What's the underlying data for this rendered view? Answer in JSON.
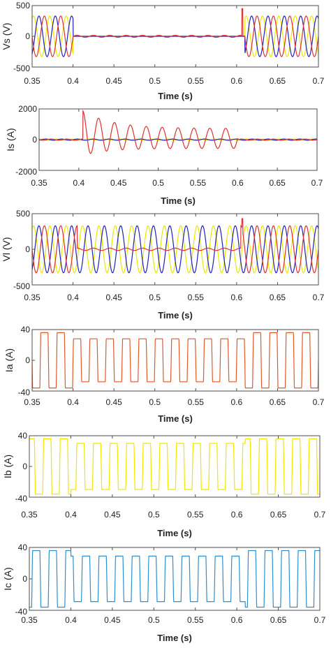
{
  "figure": {
    "background": "#ffffff",
    "axis_color": "#4d4d4d"
  },
  "chart_data": [
    {
      "type": "line",
      "title": "",
      "xlabel": "Time (s)",
      "ylabel": "Vs (V)",
      "xlim": [
        0.35,
        0.7
      ],
      "ylim": [
        -500,
        500
      ],
      "xticks": [
        0.35,
        0.4,
        0.45,
        0.5,
        0.55,
        0.6,
        0.65,
        0.7
      ],
      "xtick_labels": [
        "0.35",
        "0.4",
        "0.45",
        "0.5",
        "0.55",
        "0.6",
        "0.65",
        "0.7"
      ],
      "yticks": [
        -500,
        0,
        500
      ],
      "ytick_labels": [
        "-500",
        "0",
        "500"
      ],
      "grid": false,
      "series": [
        {
          "color": "#e8e800",
          "kind": "sine",
          "amplitude": 330,
          "frequency": 50,
          "phase_deg": -120,
          "envelope": [
            [
              0.4,
              0.61,
              0
            ]
          ],
          "spike": null
        },
        {
          "color": "#2020c0",
          "kind": "sine",
          "amplitude": 330,
          "frequency": 50,
          "phase_deg": 120,
          "envelope": [
            [
              0.4,
              0.61,
              0
            ]
          ],
          "spike": null
        },
        {
          "color": "#e03030",
          "kind": "sine",
          "amplitude": 330,
          "frequency": 50,
          "phase_deg": 0,
          "envelope": [
            [
              0.4,
              0.61,
              0.05
            ]
          ],
          "spike": {
            "x": 0.607,
            "y": 450
          }
        }
      ]
    },
    {
      "type": "line",
      "title": "",
      "xlabel": "Time (s)",
      "ylabel": "Is (A)",
      "xlim": [
        0.35,
        0.7
      ],
      "ylim": [
        -2000,
        2000
      ],
      "xticks": [
        0.35,
        0.4,
        0.45,
        0.5,
        0.55,
        0.6,
        0.65,
        0.7
      ],
      "xtick_labels": [
        "0.35",
        "0.4",
        "0.45",
        "0.5",
        "0.55",
        "0.6",
        "0.65",
        "0.7"
      ],
      "yticks": [
        -2000,
        0,
        2000
      ],
      "ytick_labels": [
        "-2000",
        "0",
        "2000"
      ],
      "grid": false,
      "series": [
        {
          "color": "#e8e800",
          "kind": "sine",
          "amplitude": 40,
          "frequency": 50,
          "phase_deg": -120,
          "envelope": [],
          "spike": null
        },
        {
          "color": "#2020c0",
          "kind": "sine",
          "amplitude": 40,
          "frequency": 50,
          "phase_deg": 120,
          "envelope": [],
          "spike": null
        },
        {
          "color": "#e03030",
          "kind": "fault",
          "fault_window": [
            0.405,
            0.6
          ],
          "peak": 1800,
          "steady_amplitude": 650,
          "offset": 350,
          "frequency": 50,
          "phase_deg": 0,
          "base_amplitude": 40
        }
      ]
    },
    {
      "type": "line",
      "title": "",
      "xlabel": "Time (s)",
      "ylabel": "Vl (V)",
      "xlim": [
        0.35,
        0.7
      ],
      "ylim": [
        -500,
        500
      ],
      "xticks": [
        0.35,
        0.4,
        0.45,
        0.5,
        0.55,
        0.6,
        0.65,
        0.7
      ],
      "xtick_labels": [
        "0.35",
        "0.4",
        "0.45",
        "0.5",
        "0.55",
        "0.6",
        "0.65",
        "0.7"
      ],
      "yticks": [
        -500,
        0,
        500
      ],
      "ytick_labels": [
        "-500",
        "0",
        "500"
      ],
      "grid": false,
      "series": [
        {
          "color": "#e8e800",
          "kind": "sine",
          "amplitude": 330,
          "frequency": 50,
          "phase_deg": -120,
          "envelope": [],
          "spike": null
        },
        {
          "color": "#2020c0",
          "kind": "sine",
          "amplitude": 330,
          "frequency": 50,
          "phase_deg": 120,
          "envelope": [],
          "spike": null
        },
        {
          "color": "#e03030",
          "kind": "sine",
          "amplitude": 330,
          "frequency": 50,
          "phase_deg": 0,
          "envelope": [
            [
              0.405,
              0.605,
              0.05
            ]
          ],
          "spike": {
            "x": 0.607,
            "y": 430
          }
        }
      ]
    },
    {
      "type": "line",
      "title": "",
      "xlabel": "Time (s)",
      "ylabel": "Ia (A)",
      "xlim": [
        0.35,
        0.7
      ],
      "ylim": [
        -40,
        40
      ],
      "xticks": [
        0.35,
        0.4,
        0.45,
        0.5,
        0.55,
        0.6,
        0.65,
        0.7
      ],
      "xtick_labels": [
        "0.35",
        "0.4",
        "0.45",
        "0.5",
        "0.55",
        "0.6",
        "0.65",
        "0.7"
      ],
      "yticks": [
        -40,
        0,
        40
      ],
      "ytick_labels": [
        "-40",
        "0",
        "40"
      ],
      "grid": false,
      "series": [
        {
          "color": "#e05a2b",
          "kind": "square",
          "amplitude": 36,
          "frequency": 50,
          "phase_deg": 0,
          "levels": [
            [
              0.4,
              0.61,
              28
            ]
          ]
        }
      ]
    },
    {
      "type": "line",
      "title": "",
      "xlabel": "Time (s)",
      "ylabel": "Ib (A)",
      "xlim": [
        0.35,
        0.7
      ],
      "ylim": [
        -40,
        40
      ],
      "xticks": [
        0.35,
        0.4,
        0.45,
        0.5,
        0.55,
        0.6,
        0.65,
        0.7
      ],
      "xtick_labels": [
        "0.35",
        "0.4",
        "0.45",
        "0.5",
        "0.55",
        "0.6",
        "0.65",
        "0.7"
      ],
      "yticks": [
        -40,
        0,
        40
      ],
      "ytick_labels": [
        "-40",
        "0",
        "40"
      ],
      "grid": false,
      "series": [
        {
          "color": "#f2e600",
          "kind": "square",
          "amplitude": 36,
          "frequency": 50,
          "phase_deg": -120,
          "levels": [
            [
              0.4,
              0.61,
              30
            ]
          ]
        }
      ]
    },
    {
      "type": "line",
      "title": "",
      "xlabel": "Time (s)",
      "ylabel": "Ic (A)",
      "xlim": [
        0.35,
        0.7
      ],
      "ylim": [
        -40,
        40
      ],
      "xticks": [
        0.35,
        0.4,
        0.45,
        0.5,
        0.55,
        0.6,
        0.65,
        0.7
      ],
      "xtick_labels": [
        "0.35",
        "0.4",
        "0.45",
        "0.5",
        "0.55",
        "0.6",
        "0.65",
        "0.7"
      ],
      "yticks": [
        -40,
        0,
        40
      ],
      "ytick_labels": [
        "-40",
        "0",
        "40"
      ],
      "grid": false,
      "series": [
        {
          "color": "#2f8fcf",
          "kind": "square",
          "amplitude": 36,
          "frequency": 50,
          "phase_deg": 120,
          "levels": [
            [
              0.4,
              0.61,
              29
            ]
          ]
        }
      ]
    }
  ]
}
